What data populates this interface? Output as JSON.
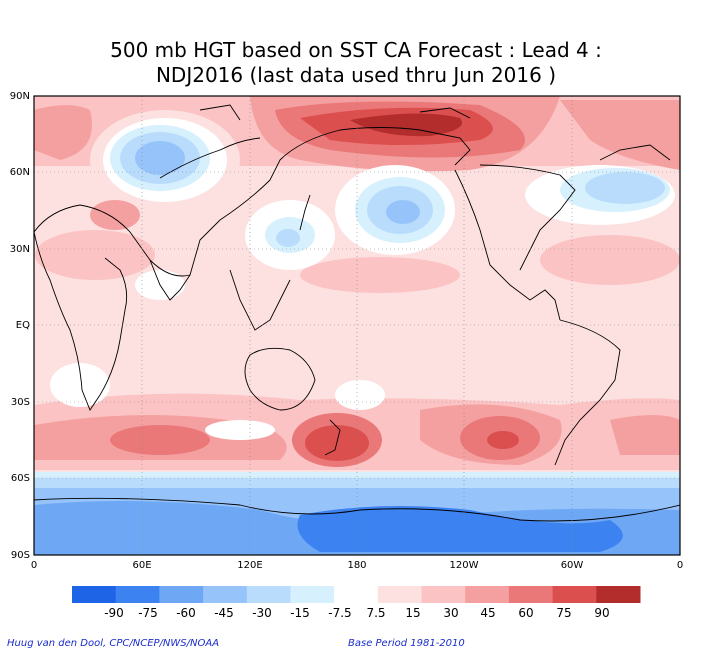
{
  "title": {
    "line1": "500 mb HGT based on SST CA Forecast : Lead 4 :",
    "line2": "NDJ2016 (last data used thru Jun 2016 )"
  },
  "map": {
    "lat_labels": [
      "90N",
      "60N",
      "30N",
      "EQ",
      "30S",
      "60S",
      "90S"
    ],
    "lon_labels": [
      "0",
      "60E",
      "120E",
      "180",
      "120W",
      "60W",
      "0"
    ]
  },
  "colorbar": {
    "tick_labels": [
      "-90",
      "-75",
      "-60",
      "-45",
      "-30",
      "-15",
      "-7.5",
      "7.5",
      "15",
      "30",
      "45",
      "60",
      "75",
      "90"
    ],
    "colors": [
      "#1e64e6",
      "#3c82f0",
      "#6ea8f5",
      "#96c3fa",
      "#b9dcfc",
      "#d7f0fd",
      "#ffffff",
      "#fde0e0",
      "#fbc3c3",
      "#f5a0a0",
      "#ea7878",
      "#dc4f4f",
      "#b32d2d"
    ]
  },
  "credits": {
    "left": "Huug van den Dool, CPC/NCEP/NWS/NOAA",
    "right": "Base Period 1981-2010"
  }
}
